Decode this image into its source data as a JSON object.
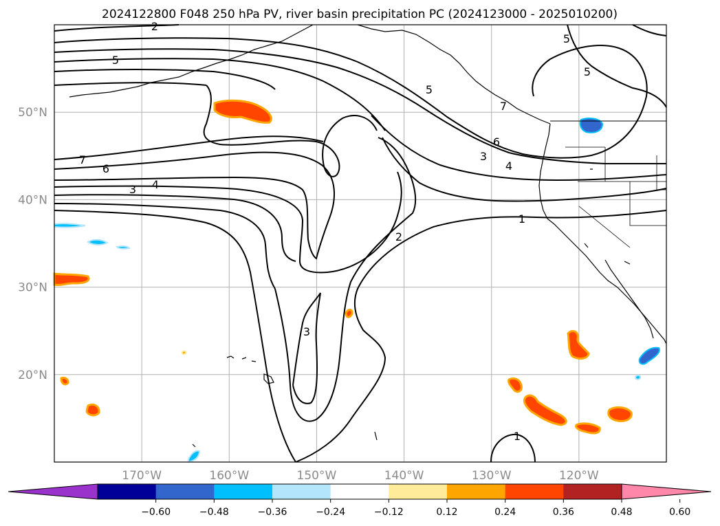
{
  "title": "2024122800 F048 250 hPa PV, river basin precipitation PC (2024123000 - 2025010200)",
  "map": {
    "lon_range": [
      -180,
      -110
    ],
    "lat_range": [
      10,
      60
    ],
    "lon_ticks": [
      {
        "value": -170,
        "label": "170°W"
      },
      {
        "value": -160,
        "label": "160°W"
      },
      {
        "value": -150,
        "label": "150°W"
      },
      {
        "value": -140,
        "label": "140°W"
      },
      {
        "value": -130,
        "label": "130°W"
      },
      {
        "value": -120,
        "label": "120°W"
      }
    ],
    "lat_ticks": [
      {
        "value": 50,
        "label": "50°N"
      },
      {
        "value": 40,
        "label": "40°N"
      },
      {
        "value": 30,
        "label": "30°N"
      },
      {
        "value": 20,
        "label": "20°N"
      }
    ],
    "gridlines": true,
    "contour_labels": [
      "2",
      "5",
      "7",
      "6",
      "3",
      "4",
      "1"
    ]
  },
  "colorbar": {
    "colors": [
      "#9933cc",
      "#000099",
      "#3366cc",
      "#00bfff",
      "#b3e5fc",
      "#ffffff",
      "#ffeb99",
      "#ffa500",
      "#ff4500",
      "#b22222",
      "#ff88aa"
    ],
    "ticks": [
      "−0.60",
      "−0.48",
      "−0.36",
      "−0.24",
      "−0.12",
      "0.12",
      "0.24",
      "0.36",
      "0.48",
      "0.60"
    ],
    "extend": "both"
  }
}
